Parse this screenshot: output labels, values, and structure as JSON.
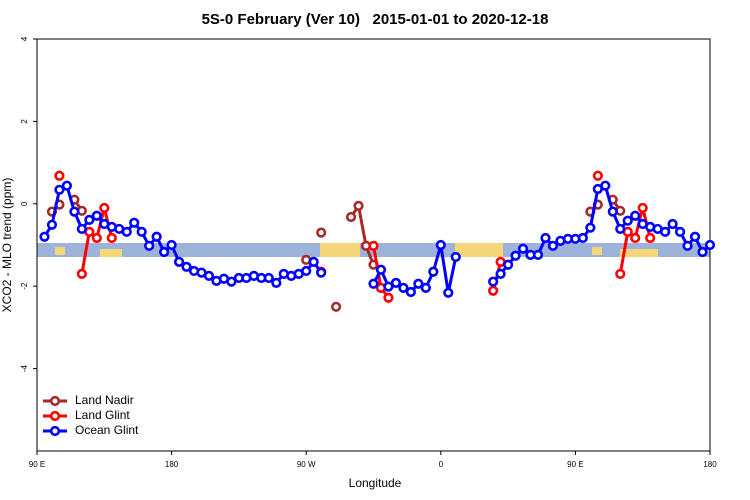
{
  "chart_data": {
    "type": "line",
    "title": "5S-0 February (Ver 10)   2015-01-01 to 2020-12-18",
    "x_label": "Longitude",
    "y_label": "XCO2 - MLO trend (ppm)",
    "xlim": [
      90,
      540
    ],
    "ylim": [
      -6,
      4
    ],
    "xticks": [
      {
        "value": 90,
        "label": "90 E"
      },
      180,
      {
        "value": 270,
        "label": "90 W"
      },
      {
        "value": 360,
        "label": "0"
      },
      {
        "value": 450,
        "label": "90 E"
      },
      {
        "value": 540,
        "label": "180"
      }
    ],
    "yticks": [
      -4,
      -2,
      0,
      2,
      4
    ],
    "legend": "bottom-left",
    "x": [
      95,
      100,
      105,
      110,
      115,
      120,
      125,
      130,
      135,
      140,
      145,
      150,
      155,
      160,
      165,
      170,
      175,
      180,
      185,
      190,
      195,
      200,
      205,
      210,
      215,
      220,
      225,
      230,
      235,
      240,
      245,
      250,
      255,
      260,
      265,
      270,
      275,
      280,
      285,
      290,
      295,
      300,
      305,
      310,
      315,
      320,
      325,
      330,
      335,
      340,
      345,
      350,
      355,
      360,
      365,
      370,
      375,
      380,
      385,
      390,
      395,
      400,
      405,
      410,
      415,
      420,
      425,
      430,
      435,
      440,
      445,
      450,
      455,
      460,
      465,
      470,
      475,
      480,
      485,
      490,
      495,
      500,
      505,
      510,
      515,
      520,
      525,
      530,
      535,
      540
    ],
    "series": [
      {
        "name": "Land Nadir",
        "color": "#a52a2a",
        "values": [
          null,
          -0.19,
          -0.02,
          null,
          0.1,
          -0.17,
          null,
          null,
          null,
          null,
          null,
          null,
          null,
          null,
          null,
          null,
          null,
          null,
          null,
          null,
          null,
          null,
          null,
          null,
          null,
          null,
          null,
          null,
          null,
          null,
          null,
          null,
          null,
          null,
          null,
          -1.36,
          null,
          -0.7,
          null,
          -2.5,
          null,
          -0.32,
          -0.05,
          -1.02,
          -1.48,
          null,
          null,
          null,
          null,
          null,
          null,
          null,
          null,
          null,
          null,
          null,
          null,
          null,
          null,
          null,
          null,
          null,
          null,
          null,
          null,
          null,
          null,
          null,
          null,
          null,
          null,
          null,
          null,
          -0.19,
          -0.02,
          null,
          0.1,
          -0.17,
          null,
          null,
          null,
          null,
          null,
          null,
          null,
          null,
          null,
          null,
          null,
          null
        ]
      },
      {
        "name": "Land Glint",
        "color": "#ff0000",
        "values": [
          null,
          null,
          0.68,
          null,
          null,
          -1.7,
          -0.68,
          -0.83,
          -0.1,
          -0.83,
          null,
          null,
          null,
          null,
          null,
          null,
          null,
          null,
          null,
          null,
          null,
          null,
          null,
          null,
          null,
          null,
          null,
          null,
          null,
          null,
          null,
          null,
          null,
          null,
          null,
          null,
          null,
          -1.65,
          null,
          null,
          null,
          null,
          null,
          null,
          -1.02,
          -2.04,
          -2.28,
          null,
          null,
          null,
          null,
          null,
          null,
          null,
          null,
          null,
          null,
          null,
          null,
          null,
          -2.11,
          -1.41,
          null,
          null,
          null,
          null,
          null,
          null,
          null,
          null,
          null,
          null,
          null,
          null,
          0.68,
          null,
          null,
          -1.7,
          -0.68,
          -0.83,
          -0.1,
          -0.83,
          null,
          null,
          null,
          null,
          null,
          null,
          null,
          null
        ]
      },
      {
        "name": "Ocean Glint",
        "color": "#0000ff",
        "values": [
          -0.8,
          -0.51,
          0.34,
          0.44,
          -0.19,
          -0.61,
          -0.39,
          -0.29,
          -0.49,
          -0.56,
          -0.61,
          -0.68,
          -0.46,
          -0.68,
          -1.02,
          -0.8,
          -1.17,
          -1.0,
          -1.41,
          -1.53,
          -1.63,
          -1.67,
          -1.75,
          -1.87,
          -1.82,
          -1.89,
          -1.8,
          -1.8,
          -1.75,
          -1.8,
          -1.8,
          -1.92,
          -1.7,
          -1.75,
          -1.7,
          -1.63,
          -1.41,
          -1.67,
          null,
          null,
          null,
          null,
          null,
          null,
          -1.94,
          -1.6,
          -2.01,
          -1.92,
          -2.04,
          -2.14,
          -1.94,
          -2.04,
          -1.65,
          -1.0,
          -2.16,
          -1.29,
          null,
          null,
          null,
          null,
          -1.89,
          -1.7,
          -1.48,
          -1.26,
          -1.09,
          -1.24,
          -1.24,
          -0.83,
          -1.02,
          -0.9,
          -0.85,
          -0.85,
          -0.83,
          -0.58,
          0.36,
          0.44,
          -0.19,
          -0.61,
          -0.41,
          -0.29,
          -0.49,
          -0.56,
          -0.61,
          -0.68,
          -0.49,
          -0.68,
          -1.02,
          -0.8,
          -1.17,
          -1.0
        ]
      }
    ]
  }
}
